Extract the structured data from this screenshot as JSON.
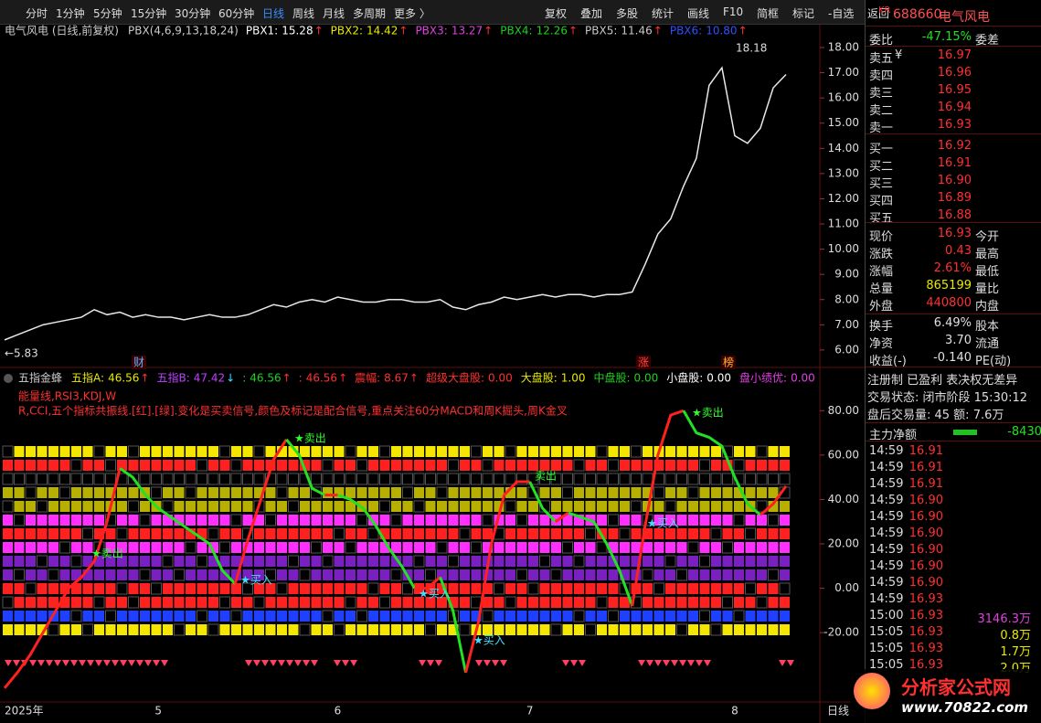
{
  "toolbar": {
    "left": [
      "分时",
      "1分钟",
      "5分钟",
      "15分钟",
      "30分钟",
      "60分钟",
      "日线",
      "周线",
      "月线",
      "多周期",
      "更多 〉"
    ],
    "active_tab": "日线",
    "right": [
      "复权",
      "叠加",
      "多股",
      "统计",
      "画线",
      "F10",
      "简框",
      "标记",
      "-自选",
      "返回"
    ]
  },
  "stock": {
    "badge": "KR",
    "code": "688660",
    "name": "电气风电"
  },
  "chart_data": [
    {
      "type": "line",
      "title": "电气风电 (日线,前复权)",
      "indicator": "PBX(4,6,9,13,18,24)",
      "readouts": [
        {
          "label": "PBX1:",
          "value": "15.28",
          "arrow": "↑",
          "color": "#ffffff"
        },
        {
          "label": "PBX2:",
          "value": "14.42",
          "arrow": "↑",
          "color": "#e8e800"
        },
        {
          "label": "PBX3:",
          "value": "13.27",
          "arrow": "↑",
          "color": "#e040e0"
        },
        {
          "label": "PBX4:",
          "value": "12.26",
          "arrow": "↑",
          "color": "#20d020"
        },
        {
          "label": "PBX5:",
          "value": "11.46",
          "arrow": "↑",
          "color": "#c8c8c8"
        },
        {
          "label": "PBX6:",
          "value": "10.80",
          "arrow": "↑",
          "color": "#3050ff"
        }
      ],
      "values": [
        6.4,
        6.6,
        6.8,
        7.0,
        7.1,
        7.2,
        7.3,
        7.6,
        7.4,
        7.5,
        7.3,
        7.4,
        7.3,
        7.3,
        7.2,
        7.3,
        7.4,
        7.3,
        7.3,
        7.4,
        7.6,
        7.8,
        7.7,
        7.9,
        8.0,
        7.9,
        8.1,
        8.0,
        7.9,
        7.9,
        8.0,
        8.0,
        7.9,
        7.9,
        8.0,
        7.7,
        7.6,
        7.8,
        7.9,
        8.1,
        8.0,
        8.1,
        8.2,
        8.1,
        8.2,
        8.2,
        8.1,
        8.2,
        8.2,
        8.3,
        9.4,
        10.6,
        11.2,
        12.5,
        13.6,
        16.5,
        17.2,
        14.5,
        14.2,
        14.8,
        16.4,
        16.93
      ],
      "color": "#e8e8e8",
      "ylim": [
        5.38,
        18.87
      ],
      "yticks": [
        {
          "value": 6,
          "label": "6.00"
        },
        {
          "value": 7,
          "label": "7.00"
        },
        {
          "value": 8,
          "label": "8.00"
        },
        {
          "value": 9,
          "label": "9.00"
        },
        {
          "value": 10,
          "label": "10.00"
        },
        {
          "value": 11,
          "label": "11.00"
        },
        {
          "value": 12,
          "label": "12.00"
        },
        {
          "value": 13,
          "label": "13.00"
        },
        {
          "value": 14,
          "label": "14.00"
        },
        {
          "value": 15,
          "label": "15.00"
        },
        {
          "value": 16,
          "label": "16.00"
        },
        {
          "value": 17,
          "label": "17.00"
        },
        {
          "value": 18,
          "label": "18.00"
        }
      ],
      "annotations": [
        "18.18",
        "←5.83"
      ],
      "markers": [
        "财",
        "涨",
        "榜"
      ]
    },
    {
      "type": "line",
      "title": "五指金蜂",
      "readouts": [
        {
          "label": "五指A:",
          "value": "46.56",
          "arrow": "↑",
          "color": "#e8e800"
        },
        {
          "label": "五指B:",
          "value": "47.42",
          "arrow": "↓",
          "color": "#c040ff"
        },
        {
          "label": ":",
          "value": "46.56",
          "arrow": "↑",
          "color": "#20d020"
        },
        {
          "label": ":",
          "value": "46.56",
          "arrow": "↑",
          "color": "#ff3030"
        },
        {
          "label": "震幅:",
          "value": "8.67",
          "arrow": "↑",
          "color": "#ff3030"
        },
        {
          "label": "超级大盘股:",
          "value": "0.00",
          "color": "#ff3030"
        },
        {
          "label": "大盘股:",
          "value": "1.00",
          "color": "#e8e800"
        },
        {
          "label": "中盘股:",
          "value": "0.00",
          "color": "#20d020"
        },
        {
          "label": "小盘股:",
          "value": "0.00",
          "color": "#ffffff"
        },
        {
          "label": "盘小绩优:",
          "value": "0.00",
          "color": "#e040e0"
        }
      ],
      "description": [
        "能量线,RSI3,KDJ,W",
        "R,CCI,五个指标共振线.[红].[绿].变化是买卖信号,颜色及标记是配合信号,重点关注60分MACD和周K掘头,周K金叉"
      ],
      "categories": [
        "2025年",
        null,
        null,
        null,
        null,
        null,
        null,
        null,
        null,
        null,
        null,
        null,
        "5",
        null,
        null,
        null,
        null,
        null,
        null,
        null,
        null,
        null,
        null,
        null,
        null,
        null,
        "6",
        null,
        null,
        null,
        null,
        null,
        null,
        null,
        null,
        null,
        null,
        null,
        null,
        null,
        null,
        "7",
        null,
        null,
        null,
        null,
        null,
        null,
        null,
        null,
        null,
        null,
        null,
        null,
        null,
        null,
        null,
        "8",
        null,
        null,
        null,
        null
      ],
      "values": [
        -45,
        -38,
        -30,
        -20,
        -10,
        0,
        5,
        12,
        30,
        54,
        50,
        42,
        36,
        32,
        28,
        24,
        20,
        8,
        2,
        22,
        40,
        58,
        67,
        60,
        45,
        42,
        42,
        40,
        36,
        28,
        18,
        10,
        0,
        0,
        5,
        -10,
        -38,
        -15,
        20,
        42,
        48,
        48,
        36,
        30,
        34,
        32,
        30,
        20,
        8,
        -8,
        28,
        60,
        78,
        80,
        70,
        68,
        64,
        50,
        38,
        33,
        38,
        46
      ],
      "colors": {
        "up": "#ff2020",
        "down": "#22e022"
      },
      "ylim": [
        -50,
        90
      ],
      "yticks": [
        {
          "value": -20,
          "label": "-20.00"
        },
        {
          "value": 0,
          "label": "0.00"
        },
        {
          "value": 20,
          "label": "20.00"
        },
        {
          "value": 40,
          "label": "40.00"
        },
        {
          "value": 60,
          "label": "60.00"
        },
        {
          "value": 80,
          "label": "80.00"
        }
      ],
      "annotations": [
        "★卖出",
        "★卖出",
        "★卖出",
        "卖出",
        "★买入",
        "★买入",
        "★买入",
        "★买入"
      ],
      "period": "日线"
    }
  ],
  "panel": {
    "weibi": [
      "委比",
      "-47.15%",
      "委差"
    ],
    "orderbook": [
      [
        "卖五",
        "¥",
        "16.97"
      ],
      [
        "卖四",
        "",
        "16.96"
      ],
      [
        "卖三",
        "",
        "16.95"
      ],
      [
        "卖二",
        "",
        "16.94"
      ],
      [
        "卖一",
        "",
        "16.93"
      ],
      [
        "买一",
        "",
        "16.92"
      ],
      [
        "买二",
        "",
        "16.91"
      ],
      [
        "买三",
        "",
        "16.90"
      ],
      [
        "买四",
        "",
        "16.89"
      ],
      [
        "买五",
        "",
        "16.88"
      ]
    ],
    "quote": [
      {
        "cells": [
          "现价",
          "16.93",
          "今开"
        ],
        "color": "#ff3030"
      },
      {
        "cells": [
          "涨跌",
          "0.43",
          "最高"
        ],
        "color": "#ff3030"
      },
      {
        "cells": [
          "涨幅",
          "2.61%",
          "最低"
        ],
        "color": "#ff3030"
      },
      {
        "cells": [
          "总量",
          "865199",
          "量比"
        ],
        "color": "#e8e800"
      },
      {
        "cells": [
          "外盘",
          "440800",
          "内盘"
        ],
        "color": "#ff3030"
      },
      {
        "cells": [
          "换手",
          "6.49%",
          "股本"
        ],
        "color": "#e0e0e0"
      },
      {
        "cells": [
          "净资",
          "3.70",
          "流通"
        ],
        "color": "#e0e0e0"
      },
      {
        "cells": [
          "收益(-)",
          "-0.140",
          "PE(动)"
        ],
        "color": "#e0e0e0"
      }
    ],
    "info": [
      "注册制 已盈利 表决权无差异",
      "交易状态: 闭市阶段 15:30:12",
      "盘后交易量: 45  额: 7.6万"
    ],
    "flow": [
      "主力净额",
      "-8430"
    ],
    "ticks": [
      [
        "14:59",
        "16.91",
        ""
      ],
      [
        "14:59",
        "16.91",
        ""
      ],
      [
        "14:59",
        "16.91",
        ""
      ],
      [
        "14:59",
        "16.90",
        ""
      ],
      [
        "14:59",
        "16.90",
        ""
      ],
      [
        "14:59",
        "16.90",
        ""
      ],
      [
        "14:59",
        "16.90",
        ""
      ],
      [
        "14:59",
        "16.90",
        ""
      ],
      [
        "14:59",
        "16.90",
        ""
      ],
      [
        "14:59",
        "16.93",
        ""
      ],
      [
        "15:00",
        "16.93",
        "3146.3万"
      ],
      [
        "15:05",
        "16.93",
        "0.8万"
      ],
      [
        "15:05",
        "16.93",
        "1.7万"
      ],
      [
        "15:05",
        "16.93",
        "2.0万"
      ]
    ]
  },
  "watermark": [
    "分析家公式网",
    "www.70822.com"
  ]
}
